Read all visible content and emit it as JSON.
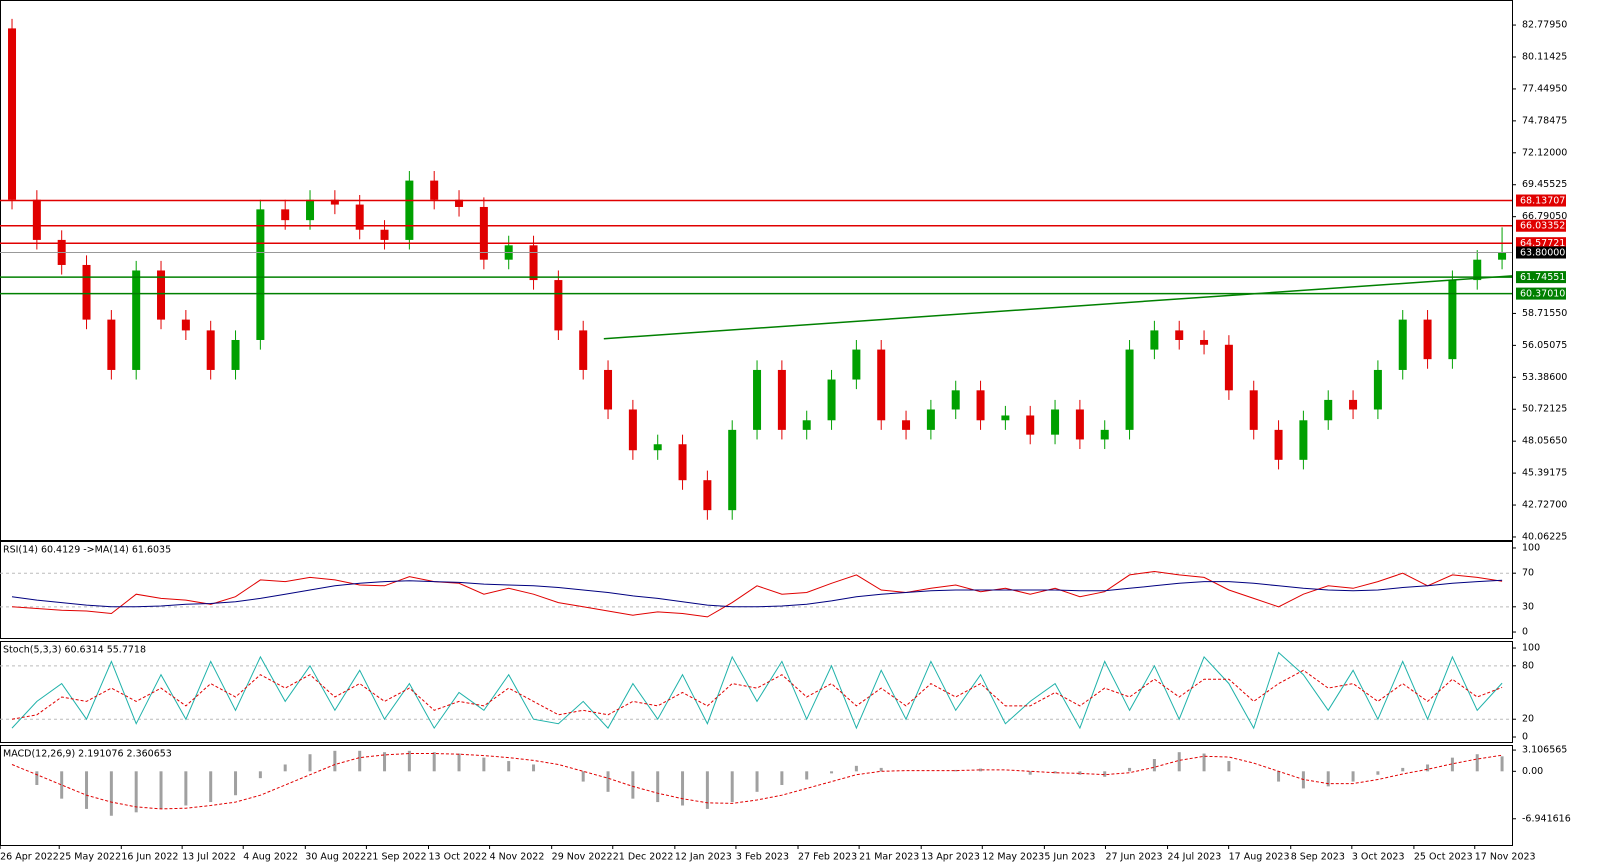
{
  "chart_data": [
    {
      "type": "candlestick",
      "xlim": [
        -0.484,
        60.4
      ],
      "xticks": [
        {
          "value": -0.48,
          "label": "26 Apr 2022"
        },
        {
          "value": 1.9,
          "label": "25 May 2022"
        },
        {
          "value": 4.4,
          "label": "16 Jun 2022"
        },
        {
          "value": 6.85,
          "label": "13 Jul 2022"
        },
        {
          "value": 9.31,
          "label": "4 Aug 2022"
        },
        {
          "value": 11.81,
          "label": "30 Aug 2022"
        },
        {
          "value": 14.27,
          "label": "21 Sep 2022"
        },
        {
          "value": 16.77,
          "label": "13 Oct 2022"
        },
        {
          "value": 19.23,
          "label": "4 Nov 2022"
        },
        {
          "value": 21.73,
          "label": "29 Nov 2022"
        },
        {
          "value": 24.19,
          "label": "21 Dec 2022"
        },
        {
          "value": 26.69,
          "label": "12 Jan 2023"
        },
        {
          "value": 29.15,
          "label": "3 Feb 2023"
        },
        {
          "value": 31.65,
          "label": "27 Feb 2023"
        },
        {
          "value": 34.11,
          "label": "21 Mar 2023"
        },
        {
          "value": 36.61,
          "label": "13 Apr 2023"
        },
        {
          "value": 39.07,
          "label": "12 May 2023"
        },
        {
          "value": 41.57,
          "label": "5 Jun 2023"
        },
        {
          "value": 44.03,
          "label": "27 Jun 2023"
        },
        {
          "value": 46.53,
          "label": "24 Jul 2023"
        },
        {
          "value": 48.99,
          "label": "17 Aug 2023"
        },
        {
          "value": 51.49,
          "label": "8 Sep 2023"
        },
        {
          "value": 53.95,
          "label": "3 Oct 2023"
        },
        {
          "value": 56.45,
          "label": "25 Oct 2023"
        },
        {
          "value": 58.9,
          "label": "17 Nov 2023"
        }
      ],
      "ylim": [
        39.81,
        84.87
      ],
      "yticks": [
        {
          "value": 82.7795,
          "label": "82.77950"
        },
        {
          "value": 80.11425,
          "label": "80.11425"
        },
        {
          "value": 77.4495,
          "label": "77.44950"
        },
        {
          "value": 74.78475,
          "label": "74.78475"
        },
        {
          "value": 72.12,
          "label": "72.12000"
        },
        {
          "value": 69.45525,
          "label": "69.45525"
        },
        {
          "value": 66.7905,
          "label": "66.79050"
        },
        {
          "value": 58.7155,
          "label": "58.71550"
        },
        {
          "value": 56.05075,
          "label": "56.05075"
        },
        {
          "value": 53.386,
          "label": "53.38600"
        },
        {
          "value": 50.72125,
          "label": "50.72125"
        },
        {
          "value": 48.0565,
          "label": "48.05650"
        },
        {
          "value": 45.39175,
          "label": "45.39175"
        },
        {
          "value": 42.727,
          "label": "42.72700"
        },
        {
          "value": 40.06225,
          "label": "40.06225"
        }
      ],
      "up_color": "#00a000",
      "down_color": "#e00000",
      "open": [
        82.5,
        68.2,
        64.85,
        62.76,
        58.2,
        54.0,
        62.3,
        58.2,
        57.3,
        54.0,
        56.5,
        67.4,
        66.5,
        68.2,
        67.8,
        65.7,
        64.85,
        69.8,
        68.2,
        67.6,
        63.2,
        64.4,
        61.5,
        57.3,
        54.0,
        50.7,
        47.3,
        47.8,
        44.8,
        42.3,
        49.0,
        54.0,
        49.0,
        49.8,
        53.2,
        55.7,
        49.8,
        49.0,
        50.7,
        52.3,
        49.8,
        50.2,
        48.6,
        50.7,
        48.2,
        49.0,
        55.7,
        57.3,
        56.5,
        56.1,
        52.3,
        49.0,
        46.5,
        49.8,
        51.5,
        50.7,
        54.0,
        58.2,
        54.9,
        61.5,
        63.2
      ],
      "high": [
        83.3,
        69.0,
        65.65,
        63.56,
        59.0,
        63.1,
        63.1,
        59.0,
        58.1,
        57.3,
        68.2,
        68.2,
        69.0,
        69.0,
        68.6,
        66.5,
        70.6,
        70.6,
        69.0,
        68.4,
        65.2,
        65.2,
        62.3,
        58.1,
        54.8,
        51.5,
        48.6,
        48.6,
        45.6,
        49.8,
        54.8,
        54.8,
        50.6,
        54.0,
        56.5,
        56.5,
        50.6,
        51.5,
        53.1,
        53.1,
        51.0,
        51.0,
        51.5,
        51.5,
        49.8,
        56.5,
        58.1,
        58.1,
        57.3,
        56.9,
        53.1,
        49.8,
        50.6,
        52.3,
        52.3,
        54.8,
        59.0,
        59.0,
        62.3,
        64.0,
        65.9
      ],
      "low": [
        67.4,
        64.05,
        61.96,
        57.4,
        53.2,
        53.2,
        57.4,
        56.5,
        53.2,
        53.2,
        55.7,
        65.7,
        65.7,
        67.0,
        64.9,
        64.05,
        64.05,
        67.4,
        66.8,
        62.4,
        62.4,
        60.7,
        56.5,
        53.2,
        49.9,
        46.5,
        46.5,
        44.0,
        41.5,
        41.5,
        48.2,
        48.2,
        48.2,
        49.0,
        52.4,
        49.0,
        48.2,
        48.2,
        49.9,
        49.0,
        49.0,
        47.8,
        47.8,
        47.4,
        47.4,
        48.2,
        54.9,
        55.7,
        55.3,
        51.5,
        48.2,
        45.7,
        45.7,
        49.0,
        49.9,
        49.9,
        53.2,
        54.1,
        54.1,
        60.7,
        62.4
      ],
      "close": [
        68.2,
        64.85,
        62.76,
        58.2,
        54.0,
        62.3,
        58.2,
        57.3,
        54.0,
        56.5,
        67.4,
        66.5,
        68.2,
        67.8,
        65.7,
        64.85,
        69.8,
        68.2,
        67.6,
        63.2,
        64.4,
        61.5,
        57.3,
        54.0,
        50.7,
        47.3,
        47.8,
        44.8,
        42.3,
        49.0,
        54.0,
        49.0,
        49.8,
        53.2,
        55.7,
        49.8,
        49.0,
        50.7,
        52.3,
        49.8,
        50.2,
        48.6,
        50.7,
        48.2,
        49.0,
        55.7,
        57.3,
        56.5,
        56.1,
        52.3,
        49.0,
        46.5,
        49.8,
        51.5,
        50.7,
        54.0,
        58.2,
        54.9,
        61.5,
        63.2,
        63.8
      ],
      "levels": [
        {
          "value": 68.13707,
          "label": "68.13707",
          "color": "#e00000"
        },
        {
          "value": 66.03352,
          "label": "66.03352",
          "color": "#e00000"
        },
        {
          "value": 64.57721,
          "label": "64.57721",
          "color": "#e00000"
        },
        {
          "value": 63.8,
          "label": "63.80000",
          "color": "#000000"
        },
        {
          "value": 61.74551,
          "label": "61.74551",
          "color": "#008000"
        },
        {
          "value": 60.3701,
          "label": "60.37010",
          "color": "#008000"
        }
      ],
      "trend_line": {
        "x": [
          23.83,
          60.4
        ],
        "values": [
          56.6,
          61.85
        ],
        "color": "#008000"
      }
    },
    {
      "type": "line",
      "title": "RSI(14) 60.4129  ->MA(14) 61.6035",
      "ylim": [
        -7.1,
        108.3
      ],
      "yticks": [
        100,
        70,
        30,
        0
      ],
      "levels": [
        70,
        30
      ],
      "series": [
        {
          "color": "#e00000",
          "values": [
            30,
            28,
            26,
            25,
            22,
            45,
            40,
            38,
            33,
            42,
            62,
            60,
            65,
            62,
            56,
            55,
            66,
            60,
            58,
            45,
            52,
            45,
            35,
            30,
            25,
            20,
            24,
            22,
            18,
            35,
            55,
            45,
            47,
            58,
            68,
            50,
            47,
            52,
            56,
            48,
            52,
            45,
            52,
            42,
            48,
            68,
            72,
            68,
            65,
            50,
            40,
            30,
            45,
            55,
            52,
            60,
            70,
            55,
            68,
            65,
            60.41
          ]
        },
        {
          "color": "#000080",
          "values": [
            42,
            38,
            35,
            32,
            30,
            30,
            31,
            33,
            34,
            36,
            40,
            45,
            50,
            55,
            58,
            60,
            61,
            60,
            59,
            57,
            56,
            55,
            53,
            50,
            47,
            43,
            40,
            36,
            32,
            30,
            30,
            31,
            33,
            37,
            42,
            45,
            47,
            49,
            50,
            50,
            50,
            50,
            50,
            49,
            49,
            52,
            55,
            58,
            60,
            60,
            58,
            55,
            52,
            50,
            49,
            50,
            53,
            55,
            58,
            60,
            61.6
          ]
        }
      ]
    },
    {
      "type": "line",
      "title": "Stoch(5,3,3) 60.6314 55.7718",
      "ylim": [
        -5.6,
        107.9
      ],
      "yticks": [
        100,
        80,
        20,
        0
      ],
      "levels": [
        80,
        20
      ],
      "series": [
        {
          "color": "#20b2aa",
          "values": [
            10,
            40,
            60,
            20,
            85,
            15,
            70,
            20,
            85,
            30,
            90,
            40,
            80,
            30,
            75,
            20,
            60,
            10,
            50,
            30,
            70,
            20,
            15,
            40,
            10,
            60,
            20,
            70,
            15,
            90,
            40,
            85,
            20,
            80,
            10,
            75,
            20,
            85,
            30,
            70,
            15,
            40,
            60,
            10,
            85,
            30,
            80,
            20,
            90,
            60,
            10,
            95,
            70,
            30,
            75,
            20,
            85,
            20,
            90,
            30,
            60.63
          ]
        },
        {
          "color": "#e00000",
          "dashed": true,
          "values": [
            20,
            25,
            45,
            40,
            55,
            40,
            55,
            35,
            60,
            45,
            70,
            55,
            70,
            45,
            60,
            40,
            55,
            30,
            40,
            35,
            55,
            40,
            25,
            30,
            25,
            40,
            35,
            50,
            35,
            60,
            55,
            70,
            45,
            60,
            35,
            55,
            35,
            60,
            45,
            60,
            35,
            35,
            50,
            35,
            55,
            45,
            65,
            45,
            65,
            65,
            40,
            60,
            75,
            55,
            60,
            40,
            60,
            40,
            65,
            45,
            55.77
          ]
        }
      ]
    },
    {
      "type": "macd",
      "title": "MACD(12,26,9) 2.191076 2.360653",
      "ylim": [
        -10.78,
        3.85
      ],
      "yticks": [
        3.106565,
        {
          "value": 0,
          "label": "0.00"
        },
        -6.941616
      ],
      "histogram": {
        "color": "#a0a0a0",
        "values": [
          0,
          -2,
          -4,
          -5.5,
          -6.5,
          -6,
          -5.5,
          -5,
          -4.5,
          -3.5,
          -1,
          1,
          2.5,
          3,
          3,
          2.8,
          3,
          2.8,
          2.6,
          2,
          1.5,
          1,
          0,
          -1.5,
          -3,
          -4,
          -4.5,
          -5,
          -5.5,
          -4.5,
          -3,
          -2,
          -1.2,
          -0.3,
          0.8,
          0.5,
          0,
          0,
          0.2,
          0.4,
          0,
          -0.5,
          -0.3,
          -0.5,
          -0.8,
          0.5,
          1.8,
          2.8,
          2.6,
          1.5,
          0,
          -1.5,
          -2.5,
          -2.2,
          -1.5,
          -0.5,
          0.5,
          1,
          2,
          2.5,
          2.19
        ]
      },
      "signal": {
        "color": "#e00000",
        "dashed": true,
        "values": [
          1,
          -0.5,
          -2,
          -3.5,
          -4.5,
          -5.2,
          -5.5,
          -5.4,
          -5,
          -4.5,
          -3.5,
          -2,
          -0.5,
          1,
          2,
          2.4,
          2.6,
          2.6,
          2.5,
          2.3,
          2,
          1.6,
          1,
          0,
          -1,
          -2.2,
          -3.2,
          -4,
          -4.6,
          -4.7,
          -4.2,
          -3.5,
          -2.5,
          -1.5,
          -0.5,
          0,
          0.1,
          0.1,
          0.1,
          0.2,
          0.2,
          0,
          -0.2,
          -0.3,
          -0.5,
          -0.2,
          0.6,
          1.6,
          2.2,
          2.1,
          1.2,
          0,
          -1.2,
          -1.8,
          -1.8,
          -1.2,
          -0.4,
          0.3,
          1.1,
          1.8,
          2.36
        ]
      }
    }
  ]
}
